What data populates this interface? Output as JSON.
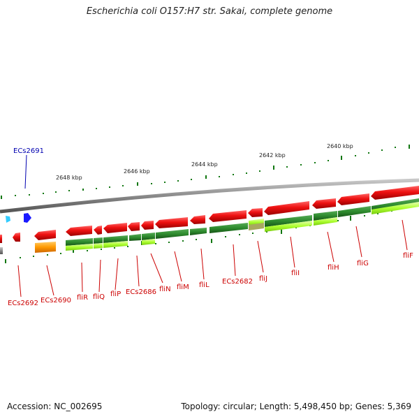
{
  "header": {
    "title": "Escherichia coli O157:H7 str. Sakai, complete genome"
  },
  "footer": {
    "accession": "Accession: NC_002695",
    "topology": "Topology: circular; Length: 5,498,450 bp; Genes: 5,369"
  },
  "map": {
    "scale_labels": [
      "2648 kbp",
      "2646 kbp",
      "2644 kbp",
      "2642 kbp",
      "2640 kbp"
    ],
    "gene_labels": {
      "ecs2691": "ECs2691",
      "ecs2692": "ECs2692",
      "ecs2690": "ECs2690",
      "flir": "fliR",
      "fliq": "fliQ",
      "flip": "fliP",
      "ecs2686": "ECs2686",
      "flin": "fliN",
      "flim": "fliM",
      "flil": "fliL",
      "ecs2682": "ECs2682",
      "flij": "fliJ",
      "flii": "fliI",
      "flih": "fliH",
      "flig": "fliG",
      "flif": "fliF"
    },
    "colors": {
      "backbone": "#8a8a8a",
      "gene_red": "#ee1111",
      "cds_dark_green": "#2e8b2e",
      "cds_light_green": "#adff2f",
      "orange": "#ff9900",
      "blue": "#1a1aff",
      "cyan": "#33ccff",
      "tick_green": "#117711",
      "label_red": "#cc0000",
      "label_blue": "#0000b0"
    }
  }
}
